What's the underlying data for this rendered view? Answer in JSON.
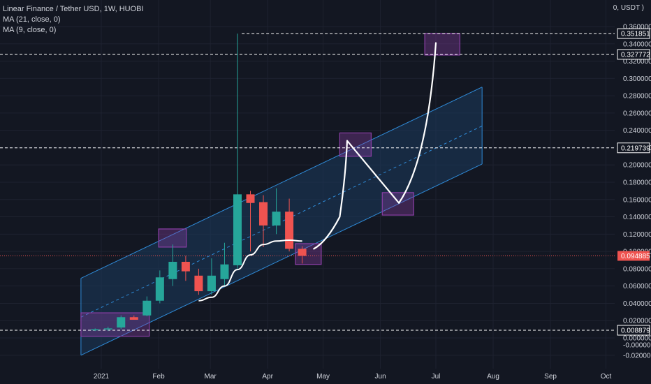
{
  "header": {
    "title": "Linear Finance / Tether USD, 1W, HUOBI",
    "indicators": [
      "MA (21, close, 0)",
      "MA (9, close, 0)"
    ],
    "unit_label": "0, USDT )"
  },
  "colors": {
    "background": "#131722",
    "grid": "#1e2230",
    "up": "#26a69a",
    "down": "#ef5350",
    "channel_fill": "#1b3a5c",
    "channel_line": "#2f8bd8",
    "projection": "#ffffff",
    "highlight_box": "#8b3fa6",
    "text": "#d1d4dc"
  },
  "chart_data": {
    "type": "candlestick",
    "y_axis_ticks": [
      "0.360000",
      "0.340000",
      "0.320000",
      "0.300000",
      "0.280000",
      "0.260000",
      "0.240000",
      "0.220000",
      "0.200000",
      "0.180000",
      "0.160000",
      "0.140000",
      "0.120000",
      "0.100000",
      "0.080000",
      "0.060000",
      "0.040000",
      "0.020000",
      "0.000000",
      "-0.000000",
      "-0.020000"
    ],
    "x_axis_ticks": [
      "2021",
      "Feb",
      "Mar",
      "Apr",
      "May",
      "Jun",
      "Jul",
      "Aug",
      "Sep",
      "Oct"
    ],
    "ylim": [
      -0.022,
      0.375
    ],
    "price_levels": [
      {
        "label": "0.351851",
        "value": 0.351851
      },
      {
        "label": "0.327772",
        "value": 0.327772
      },
      {
        "label": "0.219739",
        "value": 0.219739
      },
      {
        "label": "0.008879",
        "value": 0.008879
      }
    ],
    "current_price": {
      "label": "0.094885",
      "value": 0.094885
    },
    "candles": [
      {
        "date": "2020-12-28",
        "open": 0.009,
        "high": 0.011,
        "low": 0.008,
        "close": 0.01
      },
      {
        "date": "2021-01-04",
        "open": 0.01,
        "high": 0.013,
        "low": 0.008,
        "close": 0.011
      },
      {
        "date": "2021-01-11",
        "open": 0.012,
        "high": 0.026,
        "low": 0.01,
        "close": 0.024
      },
      {
        "date": "2021-01-18",
        "open": 0.024,
        "high": 0.026,
        "low": 0.021,
        "close": 0.021
      },
      {
        "date": "2021-01-25",
        "open": 0.026,
        "high": 0.048,
        "low": 0.025,
        "close": 0.043
      },
      {
        "date": "2021-02-01",
        "open": 0.043,
        "high": 0.078,
        "low": 0.04,
        "close": 0.07
      },
      {
        "date": "2021-02-08",
        "open": 0.068,
        "high": 0.108,
        "low": 0.06,
        "close": 0.088
      },
      {
        "date": "2021-02-15",
        "open": 0.088,
        "high": 0.095,
        "low": 0.066,
        "close": 0.077
      },
      {
        "date": "2021-02-22",
        "open": 0.072,
        "high": 0.08,
        "low": 0.05,
        "close": 0.054
      },
      {
        "date": "2021-03-01",
        "open": 0.054,
        "high": 0.092,
        "low": 0.05,
        "close": 0.072
      },
      {
        "date": "2021-03-08",
        "open": 0.068,
        "high": 0.11,
        "low": 0.06,
        "close": 0.085
      },
      {
        "date": "2021-03-15",
        "open": 0.084,
        "high": 0.351851,
        "low": 0.08,
        "close": 0.166
      },
      {
        "date": "2021-03-22",
        "open": 0.166,
        "high": 0.17,
        "low": 0.1,
        "close": 0.156
      },
      {
        "date": "2021-03-29",
        "open": 0.157,
        "high": 0.165,
        "low": 0.105,
        "close": 0.13
      },
      {
        "date": "2021-04-05",
        "open": 0.13,
        "high": 0.173,
        "low": 0.12,
        "close": 0.146
      },
      {
        "date": "2021-04-12",
        "open": 0.146,
        "high": 0.161,
        "low": 0.1,
        "close": 0.103
      },
      {
        "date": "2021-04-19",
        "open": 0.103,
        "high": 0.106,
        "low": 0.086,
        "close": 0.094885
      }
    ],
    "moving_average": [
      {
        "date": "2021-02-22",
        "value": 0.043
      },
      {
        "date": "2021-03-01",
        "value": 0.047
      },
      {
        "date": "2021-03-08",
        "value": 0.06
      },
      {
        "date": "2021-03-15",
        "value": 0.079
      },
      {
        "date": "2021-03-22",
        "value": 0.096
      },
      {
        "date": "2021-03-29",
        "value": 0.108
      },
      {
        "date": "2021-04-05",
        "value": 0.112
      },
      {
        "date": "2021-04-12",
        "value": 0.113
      },
      {
        "date": "2021-04-19",
        "value": 0.112
      }
    ],
    "channel": {
      "start": "2020-12-21",
      "end": "2021-07-26",
      "lower": [
        -0.02,
        0.201
      ],
      "middle": [
        0.024,
        0.245
      ],
      "upper": [
        0.069,
        0.29
      ]
    },
    "projection_path": [
      {
        "date": "2021-04-26",
        "value": 0.103
      },
      {
        "date": "2021-05-03",
        "value": 0.113
      },
      {
        "date": "2021-05-10",
        "value": 0.14
      },
      {
        "date": "2021-05-14",
        "value": 0.228
      },
      {
        "date": "2021-06-11",
        "value": 0.156
      },
      {
        "date": "2021-07-01",
        "value": 0.341
      }
    ],
    "highlight_boxes": [
      {
        "x0": "2020-12-21",
        "x1": "2021-01-27",
        "y0": 0.002,
        "y1": 0.029
      },
      {
        "x0": "2021-02-01",
        "x1": "2021-02-16",
        "y0": 0.105,
        "y1": 0.126
      },
      {
        "x0": "2021-04-16",
        "x1": "2021-04-30",
        "y0": 0.085,
        "y1": 0.109
      },
      {
        "x0": "2021-05-10",
        "x1": "2021-05-27",
        "y0": 0.21,
        "y1": 0.237
      },
      {
        "x0": "2021-06-02",
        "x1": "2021-06-19",
        "y0": 0.142,
        "y1": 0.168
      },
      {
        "x0": "2021-06-25",
        "x1": "2021-07-14",
        "y0": 0.327,
        "y1": 0.352
      }
    ]
  }
}
